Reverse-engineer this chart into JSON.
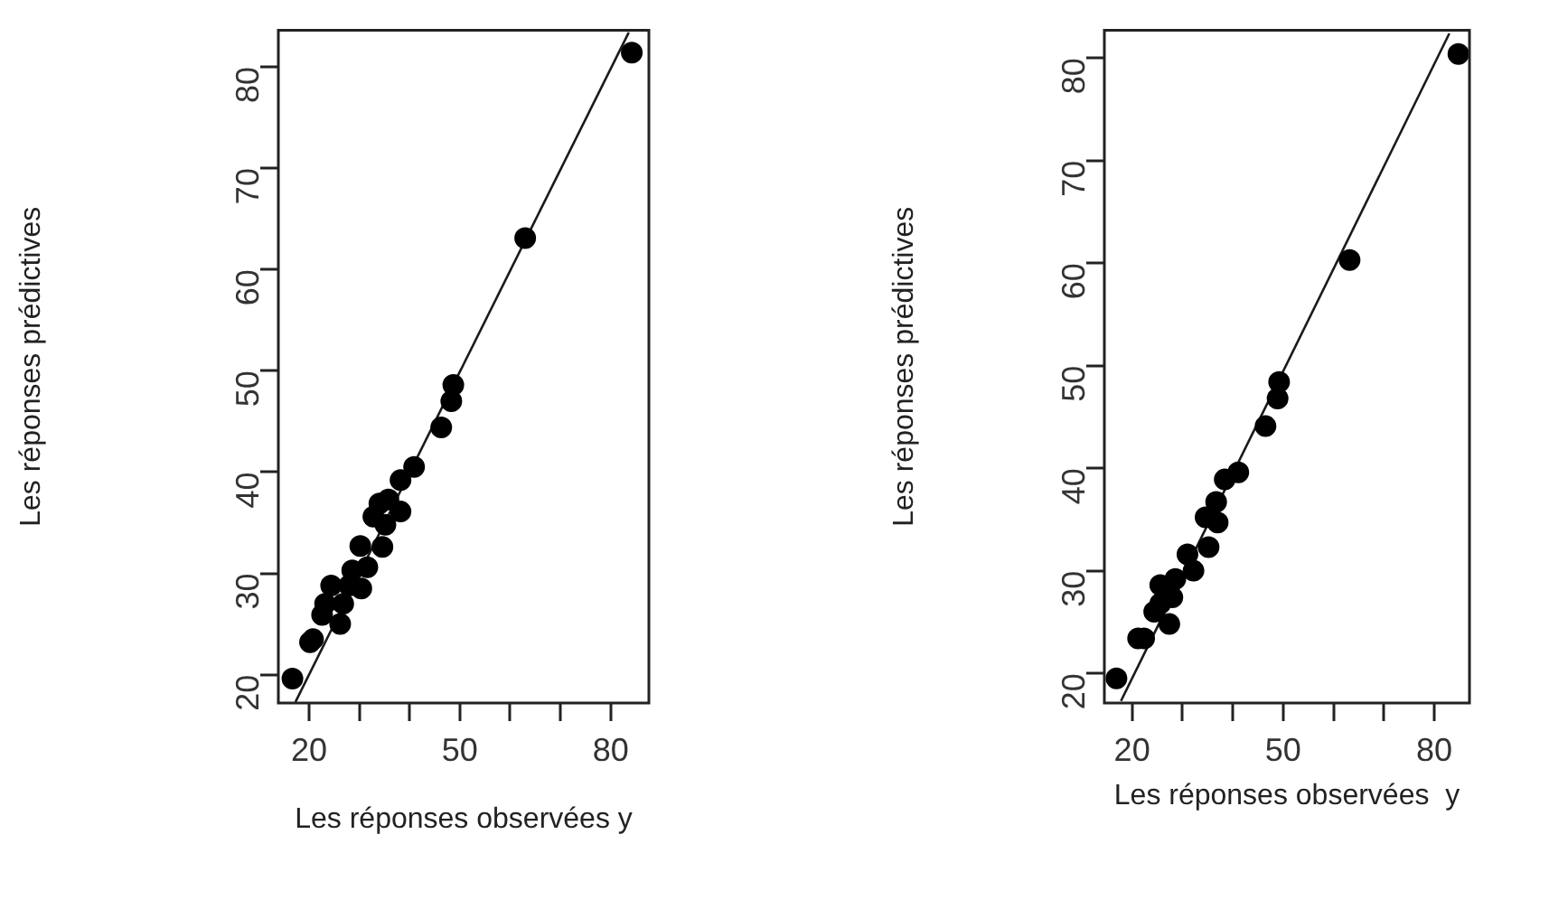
{
  "chart_data": [
    {
      "type": "scatter",
      "xlabel": "Les réponses observées y",
      "ylabel": "Les réponses prédictives",
      "xlim": [
        13.9,
        87.6
      ],
      "ylim": [
        17.2,
        83.6
      ],
      "xticks": [
        20,
        {
          "value": 30,
          "label": null
        },
        {
          "value": 40,
          "label": null
        },
        50,
        {
          "value": 60,
          "label": null
        },
        {
          "value": 70,
          "label": null
        },
        80
      ],
      "yticks": [
        20,
        30,
        40,
        50,
        60,
        70,
        80
      ],
      "grid": false,
      "series": [
        {
          "marker": "circle",
          "color": "#000000",
          "x": [
            16.7,
            20.8,
            20.2,
            22.6,
            26.2,
            23.2,
            26.8,
            24.4,
            28.0,
            30.4,
            28.6,
            31.6,
            30.2,
            34.6,
            35.2,
            32.8,
            34.0,
            35.8,
            38.2,
            38.2,
            40.9,
            46.3,
            48.3,
            48.7,
            63.0,
            84.2
          ],
          "values": [
            19.6,
            23.5,
            23.2,
            25.9,
            25.0,
            27.0,
            27.0,
            28.8,
            28.8,
            28.5,
            30.3,
            30.6,
            32.7,
            32.6,
            34.8,
            35.6,
            36.9,
            37.3,
            36.1,
            39.2,
            40.5,
            44.4,
            47.0,
            48.6,
            63.1,
            81.4
          ]
        },
        {
          "type": "line",
          "color": "#1a1a1a",
          "x": [
            17.3,
            83.6
          ],
          "values": [
            17.3,
            83.4
          ]
        }
      ]
    },
    {
      "type": "scatter",
      "xlabel": "Les réponses observées  y",
      "ylabel": "Les réponses prédictives",
      "xlim": [
        14.5,
        87.0
      ],
      "ylim": [
        17.1,
        82.7
      ],
      "xticks": [
        20,
        {
          "value": 30,
          "label": null
        },
        {
          "value": 40,
          "label": null
        },
        50,
        {
          "value": 60,
          "label": null
        },
        {
          "value": 70,
          "label": null
        },
        80
      ],
      "yticks": [
        20,
        30,
        40,
        50,
        60,
        70,
        80
      ],
      "grid": false,
      "series": [
        {
          "marker": "circle",
          "color": "#000000",
          "x": [
            16.9,
            21.2,
            22.4,
            24.4,
            27.4,
            25.6,
            28.0,
            25.6,
            28.6,
            31.0,
            32.2,
            35.2,
            37.0,
            34.6,
            36.7,
            38.4,
            41.1,
            46.5,
            48.9,
            49.2,
            63.2,
            84.8
          ],
          "values": [
            19.5,
            23.4,
            23.4,
            26.0,
            24.8,
            26.8,
            27.4,
            28.6,
            29.2,
            31.6,
            30.0,
            32.3,
            34.7,
            35.2,
            36.7,
            38.9,
            39.6,
            44.1,
            46.8,
            48.4,
            60.3,
            80.4
          ]
        },
        {
          "type": "line",
          "color": "#1a1a1a",
          "x": [
            17.8,
            83.0
          ],
          "values": [
            17.3,
            82.4
          ]
        }
      ]
    }
  ]
}
